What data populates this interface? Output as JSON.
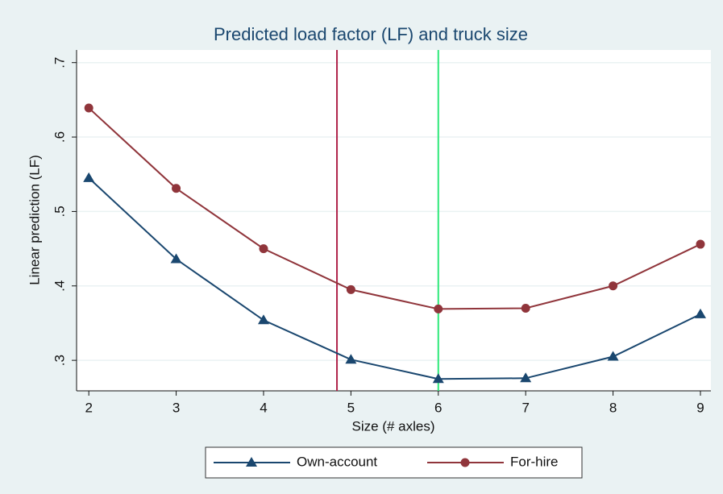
{
  "chart_data": {
    "type": "line",
    "title": "Predicted load factor (LF) and truck size",
    "x_label": "Size (# axles)",
    "y_label": "Linear prediction (LF)",
    "x": [
      2,
      3,
      4,
      5,
      6,
      7,
      8,
      9
    ],
    "series": [
      {
        "name": "Own-account",
        "color": "#1a476f",
        "marker": "triangle",
        "values": [
          0.545,
          0.436,
          0.354,
          0.301,
          0.275,
          0.276,
          0.305,
          0.362
        ]
      },
      {
        "name": "For-hire",
        "color": "#90353b",
        "marker": "circle",
        "values": [
          0.639,
          0.531,
          0.45,
          0.395,
          0.369,
          0.37,
          0.4,
          0.456
        ]
      }
    ],
    "vlines": [
      {
        "value": 4.84,
        "color": "#b0234a"
      },
      {
        "value": 6,
        "color": "#2ee87a"
      }
    ],
    "xlim": [
      1.86,
      9.12
    ],
    "xticks": [
      2,
      3,
      4,
      5,
      6,
      7,
      8,
      9
    ],
    "ylim": [
      0.259,
      0.717
    ],
    "yticks": [
      {
        "value": 0.3,
        "label": ".3"
      },
      {
        "value": 0.4,
        "label": ".4"
      },
      {
        "value": 0.5,
        "label": ".5"
      },
      {
        "value": 0.6,
        "label": ".6"
      },
      {
        "value": 0.7,
        "label": ".7"
      }
    ],
    "grid": true
  }
}
